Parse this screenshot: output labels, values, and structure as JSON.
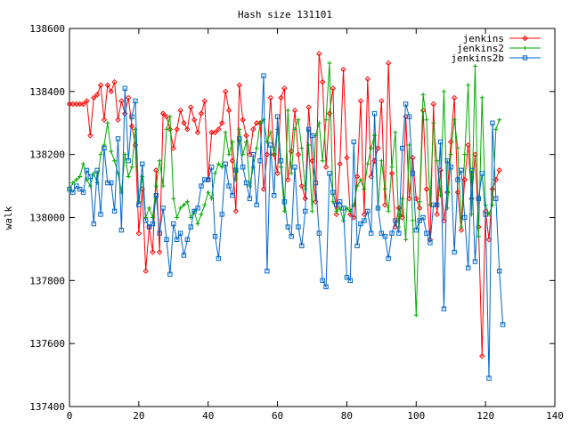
{
  "chart_data": {
    "type": "line",
    "title": "Hash size 131101",
    "xlabel": "",
    "ylabel": "walk",
    "xlim": [
      0,
      140
    ],
    "ylim": [
      137400,
      138600
    ],
    "xticks": [
      0,
      20,
      40,
      60,
      80,
      100,
      120,
      140
    ],
    "yticks": [
      137400,
      137600,
      137800,
      138000,
      138200,
      138400,
      138600
    ],
    "grid": false,
    "legend_position": "top-right",
    "series": [
      {
        "name": "jenkins",
        "color": "#ff0000",
        "marker": "diamond",
        "y": [
          138360,
          138360,
          138360,
          138360,
          138360,
          138370,
          138260,
          138380,
          138390,
          138420,
          138310,
          138420,
          138400,
          138430,
          138310,
          138370,
          138330,
          138380,
          138290,
          138230,
          137950,
          138090,
          137830,
          137970,
          137890,
          138150,
          137890,
          138330,
          138320,
          138280,
          138220,
          138280,
          138340,
          138300,
          138280,
          138350,
          138310,
          138270,
          138330,
          138370,
          138120,
          138270,
          138270,
          138280,
          138300,
          138400,
          138340,
          138180,
          138020,
          138420,
          138310,
          138260,
          138200,
          138280,
          138300,
          138300,
          138090,
          138200,
          138380,
          138200,
          138140,
          138380,
          138410,
          138120,
          138210,
          138340,
          138200,
          138100,
          138060,
          138350,
          138180,
          138050,
          138520,
          138430,
          138160,
          138330,
          138410,
          138010,
          138170,
          138470,
          138190,
          138010,
          138000,
          138130,
          138370,
          138010,
          138440,
          138130,
          138180,
          138220,
          138370,
          138040,
          138490,
          138140,
          137970,
          138030,
          138000,
          138320,
          138060,
          138190,
          138060,
          138030,
          138340,
          138090,
          137930,
          138360,
          138010,
          138150,
          137990,
          138080,
          138240,
          138380,
          138080,
          137960,
          138120,
          138230,
          138060,
          138200,
          137970,
          137560,
          138020,
          137930,
          138090,
          138120,
          138150
        ]
      },
      {
        "name": "jenkins2",
        "color": "#00aa00",
        "marker": "plus",
        "y": [
          138090,
          138110,
          138120,
          138130,
          138170,
          138120,
          138100,
          138140,
          138110,
          138200,
          138230,
          138300,
          138210,
          138180,
          138140,
          138080,
          138200,
          138130,
          138160,
          138280,
          138050,
          138130,
          138000,
          138030,
          138000,
          138100,
          138180,
          138100,
          138280,
          138320,
          138060,
          138000,
          138030,
          138040,
          138050,
          138000,
          138020,
          137980,
          138010,
          138040,
          138080,
          138060,
          138140,
          138170,
          138160,
          138270,
          138200,
          138240,
          138120,
          138280,
          138200,
          138240,
          138100,
          138160,
          138220,
          138300,
          138310,
          138240,
          138270,
          138200,
          138280,
          138160,
          138020,
          138340,
          138140,
          138280,
          138310,
          138220,
          138090,
          138230,
          138020,
          138260,
          138300,
          138180,
          138310,
          138490,
          138050,
          138020,
          138030,
          137990,
          138030,
          138020,
          138040,
          138100,
          138120,
          138090,
          138170,
          138220,
          138260,
          138030,
          138180,
          138090,
          138020,
          138160,
          138270,
          137970,
          138060,
          137930,
          138230,
          137990,
          137690,
          138050,
          138390,
          138310,
          138040,
          138300,
          138180,
          138070,
          138400,
          138030,
          138200,
          138310,
          138220,
          137970,
          138200,
          138420,
          138010,
          138480,
          137940,
          138380,
          138040,
          138010,
          138040,
          138280,
          138310
        ]
      },
      {
        "name": "jenkins2b",
        "color": "#0066cc",
        "marker": "square",
        "y": [
          138090,
          138080,
          138100,
          138090,
          138080,
          138150,
          138130,
          137980,
          138150,
          138010,
          138220,
          138110,
          138110,
          138020,
          138250,
          137960,
          138410,
          138180,
          138320,
          138370,
          138040,
          138170,
          137990,
          137970,
          137980,
          138070,
          137950,
          138030,
          137930,
          137820,
          137980,
          137930,
          137950,
          137880,
          137930,
          137970,
          138020,
          138030,
          138100,
          138120,
          138120,
          138160,
          137940,
          137870,
          138010,
          138170,
          138100,
          138070,
          138150,
          138250,
          138160,
          138110,
          138060,
          138200,
          138040,
          138180,
          138450,
          137830,
          138230,
          138070,
          138320,
          138180,
          138050,
          137970,
          137940,
          138160,
          137970,
          137910,
          138020,
          138280,
          138260,
          138110,
          137950,
          137800,
          137780,
          138140,
          138080,
          138040,
          138050,
          138030,
          137810,
          137800,
          138240,
          137910,
          137980,
          137990,
          138020,
          137950,
          138330,
          138030,
          137950,
          137940,
          137870,
          137950,
          137990,
          137950,
          138220,
          138360,
          138320,
          138140,
          137960,
          137990,
          138000,
          137950,
          137920,
          138040,
          138040,
          138240,
          137710,
          138180,
          138160,
          137890,
          138120,
          138150,
          138000,
          137840,
          138150,
          137860,
          138060,
          138140,
          138010,
          137490,
          138300,
          138060,
          137830,
          137660
        ]
      }
    ]
  }
}
